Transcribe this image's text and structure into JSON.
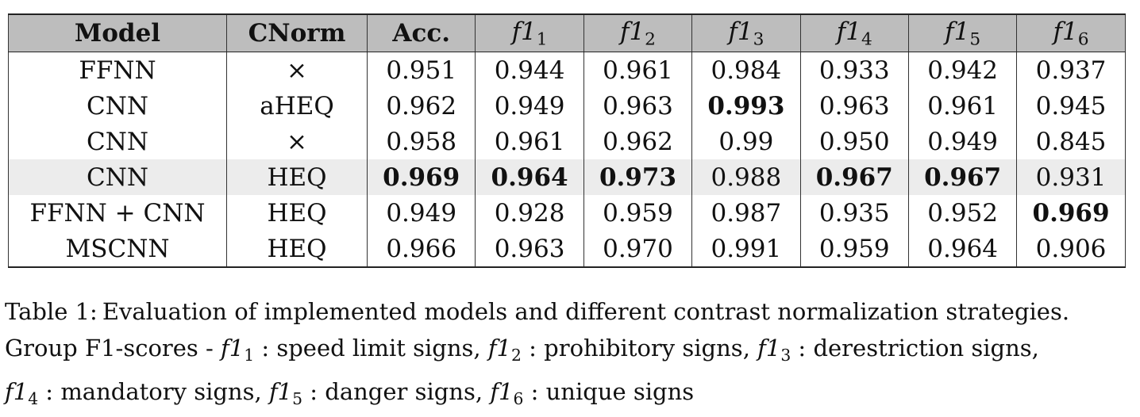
{
  "table": {
    "headers": [
      {
        "text": "Model",
        "type": "plain"
      },
      {
        "text": "CNorm",
        "type": "plain"
      },
      {
        "text": "Acc.",
        "type": "plain"
      },
      {
        "text": "f1",
        "sub": "1",
        "type": "math"
      },
      {
        "text": "f1",
        "sub": "2",
        "type": "math"
      },
      {
        "text": "f1",
        "sub": "3",
        "type": "math"
      },
      {
        "text": "f1",
        "sub": "4",
        "type": "math"
      },
      {
        "text": "f1",
        "sub": "5",
        "type": "math"
      },
      {
        "text": "f1",
        "sub": "6",
        "type": "math"
      }
    ],
    "rows": [
      {
        "cells": [
          "FFNN",
          "×",
          "0.951",
          "0.944",
          "0.961",
          "0.984",
          "0.933",
          "0.942",
          "0.937"
        ],
        "bold": [],
        "highlight": false
      },
      {
        "cells": [
          "CNN",
          "aHEQ",
          "0.962",
          "0.949",
          "0.963",
          "0.993",
          "0.963",
          "0.961",
          "0.945"
        ],
        "bold": [
          5
        ],
        "highlight": false
      },
      {
        "cells": [
          "CNN",
          "×",
          "0.958",
          "0.961",
          "0.962",
          "0.99",
          "0.950",
          "0.949",
          "0.845"
        ],
        "bold": [],
        "highlight": false
      },
      {
        "cells": [
          "CNN",
          "HEQ",
          "0.969",
          "0.964",
          "0.973",
          "0.988",
          "0.967",
          "0.967",
          "0.931"
        ],
        "bold": [
          2,
          3,
          4,
          6,
          7
        ],
        "highlight": true
      },
      {
        "cells": [
          "FFNN + CNN",
          "HEQ",
          "0.949",
          "0.928",
          "0.959",
          "0.987",
          "0.935",
          "0.952",
          "0.969"
        ],
        "bold": [
          8
        ],
        "highlight": false
      },
      {
        "cells": [
          "MSCNN",
          "HEQ",
          "0.966",
          "0.963",
          "0.970",
          "0.991",
          "0.959",
          "0.964",
          "0.906"
        ],
        "bold": [],
        "highlight": false
      }
    ],
    "highlight_color": "#ececec",
    "header_color": "#bdbdbd"
  },
  "caption": {
    "label": "Table 1:",
    "line1": "Evaluation of implemented models and different contrast normalization strategies.",
    "line2_prefix": "Group F1-scores - ",
    "items": [
      {
        "var": "f1",
        "sub": "1",
        "desc": "speed limit signs"
      },
      {
        "var": "f1",
        "sub": "2",
        "desc": "prohibitory signs"
      },
      {
        "var": "f1",
        "sub": "3",
        "desc": "derestriction signs"
      },
      {
        "var": "f1",
        "sub": "4",
        "desc": "mandatory signs"
      },
      {
        "var": "f1",
        "sub": "5",
        "desc": "danger signs"
      },
      {
        "var": "f1",
        "sub": "6",
        "desc": "unique signs"
      }
    ],
    "separator": " : ",
    "item_joiner": ", "
  }
}
